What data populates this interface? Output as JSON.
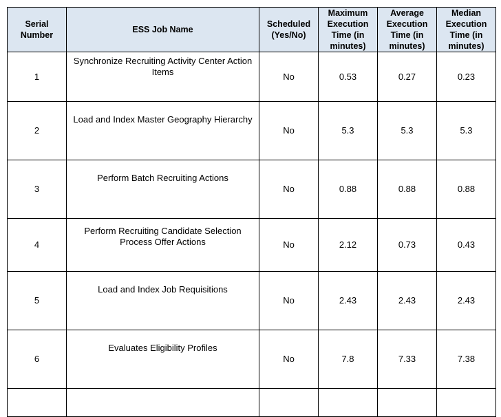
{
  "table": {
    "headers": {
      "serial": "Serial Number",
      "job_name": "ESS Job Name",
      "scheduled": "Scheduled (Yes/No)",
      "max": "Maximum Execution Time (in minutes)",
      "avg": "Average Execution Time (in minutes)",
      "median": "Median Execution Time (in minutes)"
    },
    "rows": [
      {
        "serial": "1",
        "name": "Synchronize Recruiting Activity Center Action Items",
        "scheduled": "No",
        "max": "0.53",
        "avg": "0.27",
        "median": "0.23"
      },
      {
        "serial": "2",
        "name": "Load and Index Master Geography Hierarchy",
        "scheduled": "No",
        "max": "5.3",
        "avg": "5.3",
        "median": "5.3"
      },
      {
        "serial": "3",
        "name": "Perform Batch Recruiting Actions",
        "scheduled": "No",
        "max": "0.88",
        "avg": "0.88",
        "median": "0.88"
      },
      {
        "serial": "4",
        "name": "Perform Recruiting Candidate Selection Process Offer Actions",
        "scheduled": "No",
        "max": "2.12",
        "avg": "0.73",
        "median": "0.43"
      },
      {
        "serial": "5",
        "name": "Load and Index Job Requisitions",
        "scheduled": "No",
        "max": "2.43",
        "avg": "2.43",
        "median": "2.43"
      },
      {
        "serial": "6",
        "name": "Evaluates Eligibility Profiles",
        "scheduled": "No",
        "max": "7.8",
        "avg": "7.33",
        "median": "7.38"
      }
    ]
  }
}
